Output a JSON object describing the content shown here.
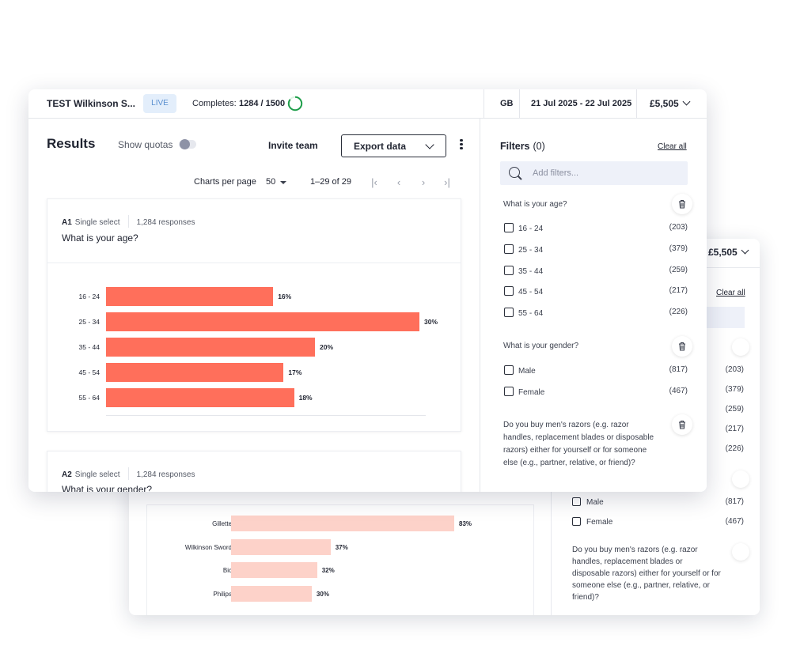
{
  "front": {
    "topbar": {
      "title": "TEST Wilkinson S...",
      "status": "LIVE",
      "completes_label": "Completes:",
      "completes_value": "1284 / 1500",
      "completes_progress": 0.856,
      "country": "GB",
      "dates": "21 Jul 2025 - 22 Jul 2025",
      "price": "£5,505"
    },
    "toolbar": {
      "title": "Results",
      "show_quotas_label": "Show quotas",
      "show_quotas_on": false,
      "invite_label": "Invite team",
      "export_label": "Export data"
    },
    "pagination": {
      "charts_per_page_label": "Charts per page",
      "charts_per_page_value": "50",
      "range": "1–29 of 29"
    },
    "cards": [
      {
        "id": "A1",
        "type": "Single select",
        "responses": "1,284 responses",
        "question": "What is your age?"
      },
      {
        "id": "A2",
        "type": "Single select",
        "responses": "1,284 responses",
        "question": "What is your gender?"
      }
    ],
    "filters": {
      "title": "Filters",
      "count": "(0)",
      "clear_label": "Clear all",
      "search_placeholder": "Add filters...",
      "groups": [
        {
          "question": "What is your age?",
          "options": [
            {
              "label": "16 - 24",
              "count": "(203)"
            },
            {
              "label": "25 - 34",
              "count": "(379)"
            },
            {
              "label": "35 - 44",
              "count": "(259)"
            },
            {
              "label": "45 - 54",
              "count": "(217)"
            },
            {
              "label": "55 - 64",
              "count": "(226)"
            }
          ]
        },
        {
          "question": "What is your gender?",
          "options": [
            {
              "label": "Male",
              "count": "(817)"
            },
            {
              "label": "Female",
              "count": "(467)"
            }
          ]
        },
        {
          "question": "Do you buy men's razors (e.g. razor handles, replacement blades or disposable razors) either for yourself or for someone else (e.g., partner, relative, or friend)?"
        }
      ]
    }
  },
  "back": {
    "price": "£5,505",
    "clear_label": "Clear all",
    "age_counts": [
      "(203)",
      "(379)",
      "(259)",
      "(217)",
      "(226)"
    ],
    "gender_options": [
      {
        "label": "Male",
        "count": "(817)"
      },
      {
        "label": "Female",
        "count": "(467)"
      }
    ],
    "razor_question": "Do you buy men's razors (e.g. razor handles, replacement blades or disposable razors) either for yourself or for someone else (e.g., partner, relative, or friend)?"
  },
  "chart_data": [
    {
      "type": "bar",
      "orientation": "horizontal",
      "categories": [
        "16 - 24",
        "25 - 34",
        "35 - 44",
        "45 - 54",
        "55 - 64"
      ],
      "values": [
        16,
        30,
        20,
        17,
        18
      ],
      "value_labels": [
        "16%",
        "30%",
        "20%",
        "17%",
        "18%"
      ],
      "color": "#ff6f5b"
    },
    {
      "type": "bar",
      "orientation": "horizontal",
      "categories": [
        "Gillette",
        "Wilkinson Sword",
        "Bic",
        "Philips"
      ],
      "values": [
        83,
        37,
        32,
        30
      ],
      "value_labels": [
        "83%",
        "37%",
        "32%",
        "30%"
      ],
      "color": "#fdd2c9"
    }
  ]
}
